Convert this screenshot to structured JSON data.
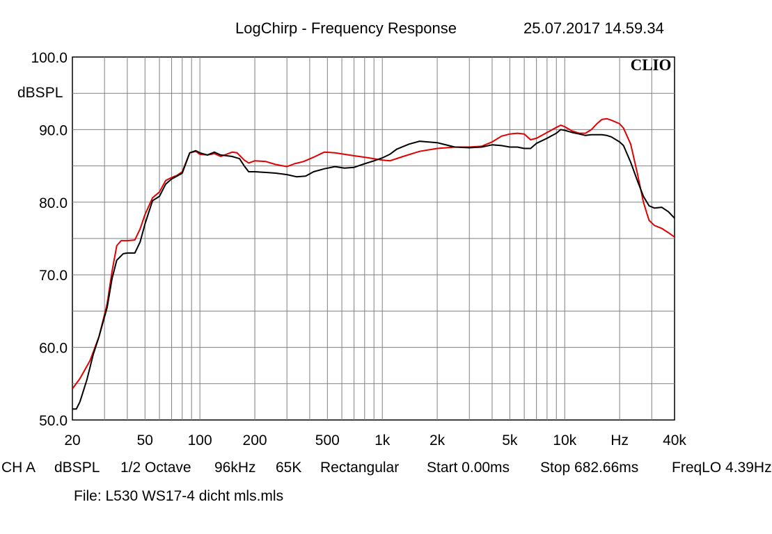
{
  "header": {
    "title": "LogChirp - Frequency Response",
    "datetime": "25.07.2017 14.59.34"
  },
  "brand": "CLIO",
  "info": {
    "channel": "CH A",
    "unit": "dBSPL",
    "smoothing": "1/2 Octave",
    "sample_rate": "96kHz",
    "size": "65K",
    "window": "Rectangular",
    "start": "Start 0.00ms",
    "stop": "Stop 682.66ms",
    "freq_label": "FreqLO 4.39Hz"
  },
  "file": "File: L530 WS17-4 dicht mls.mls",
  "chart_data": {
    "type": "line",
    "title": "LogChirp - Frequency Response",
    "ylabel": "dBSPL",
    "xlabel": "Hz",
    "xscale": "log",
    "xlim": [
      20,
      40000
    ],
    "ylim": [
      50,
      100
    ],
    "grid": true,
    "y_ticks": [
      {
        "value": 50,
        "label": "50.0"
      },
      {
        "value": 60,
        "label": "60.0"
      },
      {
        "value": 70,
        "label": "70.0"
      },
      {
        "value": 80,
        "label": "80.0"
      },
      {
        "value": 90,
        "label": "90.0"
      },
      {
        "value": 100,
        "label": "100.0"
      }
    ],
    "x_ticks": [
      {
        "value": 20,
        "label": "20"
      },
      {
        "value": 50,
        "label": "50"
      },
      {
        "value": 100,
        "label": "100"
      },
      {
        "value": 200,
        "label": "200"
      },
      {
        "value": 500,
        "label": "500"
      },
      {
        "value": 1000,
        "label": "1k"
      },
      {
        "value": 2000,
        "label": "2k"
      },
      {
        "value": 5000,
        "label": "5k"
      },
      {
        "value": 10000,
        "label": "10k"
      },
      {
        "value": 20000,
        "label": "Hz"
      },
      {
        "value": 40000,
        "label": "40k"
      }
    ],
    "series": [
      {
        "color": "#e00000",
        "points": [
          [
            20,
            54.3
          ],
          [
            22,
            55.7
          ],
          [
            25,
            58.2
          ],
          [
            28,
            61.5
          ],
          [
            31,
            66.0
          ],
          [
            33,
            70.5
          ],
          [
            35,
            74.0
          ],
          [
            37,
            74.7
          ],
          [
            40,
            74.7
          ],
          [
            44,
            74.8
          ],
          [
            47,
            76.3
          ],
          [
            50,
            78.3
          ],
          [
            55,
            80.6
          ],
          [
            60,
            81.4
          ],
          [
            65,
            83.0
          ],
          [
            70,
            83.4
          ],
          [
            75,
            83.7
          ],
          [
            80,
            84.2
          ],
          [
            88,
            86.8
          ],
          [
            95,
            87.0
          ],
          [
            100,
            86.6
          ],
          [
            110,
            86.5
          ],
          [
            120,
            86.7
          ],
          [
            130,
            86.3
          ],
          [
            150,
            86.9
          ],
          [
            160,
            86.8
          ],
          [
            175,
            85.8
          ],
          [
            185,
            85.4
          ],
          [
            200,
            85.7
          ],
          [
            230,
            85.6
          ],
          [
            260,
            85.2
          ],
          [
            300,
            84.9
          ],
          [
            330,
            85.3
          ],
          [
            370,
            85.6
          ],
          [
            420,
            86.2
          ],
          [
            480,
            86.9
          ],
          [
            550,
            86.8
          ],
          [
            620,
            86.6
          ],
          [
            700,
            86.4
          ],
          [
            800,
            86.2
          ],
          [
            900,
            86.0
          ],
          [
            1000,
            85.8
          ],
          [
            1100,
            85.7
          ],
          [
            1300,
            86.3
          ],
          [
            1600,
            87.0
          ],
          [
            2000,
            87.4
          ],
          [
            2500,
            87.6
          ],
          [
            3000,
            87.6
          ],
          [
            3500,
            87.7
          ],
          [
            4000,
            88.3
          ],
          [
            4500,
            89.1
          ],
          [
            5000,
            89.4
          ],
          [
            5500,
            89.5
          ],
          [
            6000,
            89.4
          ],
          [
            6500,
            88.6
          ],
          [
            7000,
            88.8
          ],
          [
            8000,
            89.6
          ],
          [
            9000,
            90.3
          ],
          [
            9500,
            90.6
          ],
          [
            10000,
            90.4
          ],
          [
            11000,
            89.8
          ],
          [
            12000,
            89.5
          ],
          [
            13000,
            89.5
          ],
          [
            14000,
            90.0
          ],
          [
            15000,
            90.8
          ],
          [
            16000,
            91.4
          ],
          [
            17000,
            91.5
          ],
          [
            18000,
            91.3
          ],
          [
            20000,
            90.8
          ],
          [
            21000,
            90.2
          ],
          [
            23000,
            88.0
          ],
          [
            25000,
            84.0
          ],
          [
            27000,
            80.0
          ],
          [
            29000,
            77.5
          ],
          [
            31000,
            76.8
          ],
          [
            34000,
            76.4
          ],
          [
            37000,
            75.8
          ],
          [
            40000,
            75.2
          ]
        ]
      },
      {
        "color": "#000000",
        "points": [
          [
            20,
            51.5
          ],
          [
            21,
            51.5
          ],
          [
            22,
            52.5
          ],
          [
            24,
            55.5
          ],
          [
            26,
            59.0
          ],
          [
            28,
            61.5
          ],
          [
            31,
            65.5
          ],
          [
            33,
            69.5
          ],
          [
            35,
            72.0
          ],
          [
            38,
            72.9
          ],
          [
            40,
            73.0
          ],
          [
            44,
            73.0
          ],
          [
            47,
            74.5
          ],
          [
            50,
            77.0
          ],
          [
            55,
            80.2
          ],
          [
            60,
            80.8
          ],
          [
            65,
            82.5
          ],
          [
            70,
            83.2
          ],
          [
            75,
            83.6
          ],
          [
            80,
            84.0
          ],
          [
            88,
            86.8
          ],
          [
            95,
            87.1
          ],
          [
            100,
            86.8
          ],
          [
            110,
            86.5
          ],
          [
            120,
            86.9
          ],
          [
            130,
            86.5
          ],
          [
            150,
            86.3
          ],
          [
            165,
            86.0
          ],
          [
            175,
            85.0
          ],
          [
            185,
            84.2
          ],
          [
            200,
            84.2
          ],
          [
            230,
            84.1
          ],
          [
            260,
            84.0
          ],
          [
            300,
            83.8
          ],
          [
            340,
            83.5
          ],
          [
            380,
            83.6
          ],
          [
            420,
            84.2
          ],
          [
            480,
            84.6
          ],
          [
            550,
            84.9
          ],
          [
            620,
            84.7
          ],
          [
            700,
            84.8
          ],
          [
            800,
            85.3
          ],
          [
            900,
            85.7
          ],
          [
            1000,
            86.1
          ],
          [
            1100,
            86.6
          ],
          [
            1200,
            87.3
          ],
          [
            1400,
            88.0
          ],
          [
            1600,
            88.4
          ],
          [
            2000,
            88.2
          ],
          [
            2500,
            87.6
          ],
          [
            3000,
            87.5
          ],
          [
            3500,
            87.6
          ],
          [
            4000,
            87.9
          ],
          [
            4500,
            87.8
          ],
          [
            5000,
            87.6
          ],
          [
            5500,
            87.6
          ],
          [
            6000,
            87.4
          ],
          [
            6500,
            87.4
          ],
          [
            7000,
            88.1
          ],
          [
            8000,
            88.8
          ],
          [
            9000,
            89.5
          ],
          [
            9500,
            90.0
          ],
          [
            10000,
            89.9
          ],
          [
            11000,
            89.6
          ],
          [
            12000,
            89.4
          ],
          [
            13000,
            89.2
          ],
          [
            14000,
            89.3
          ],
          [
            16000,
            89.3
          ],
          [
            17000,
            89.2
          ],
          [
            18000,
            89.0
          ],
          [
            20000,
            88.3
          ],
          [
            21000,
            87.8
          ],
          [
            23000,
            85.5
          ],
          [
            25000,
            83.0
          ],
          [
            27000,
            80.8
          ],
          [
            29000,
            79.5
          ],
          [
            31000,
            79.2
          ],
          [
            34000,
            79.3
          ],
          [
            37000,
            78.7
          ],
          [
            40000,
            77.8
          ]
        ]
      }
    ]
  }
}
